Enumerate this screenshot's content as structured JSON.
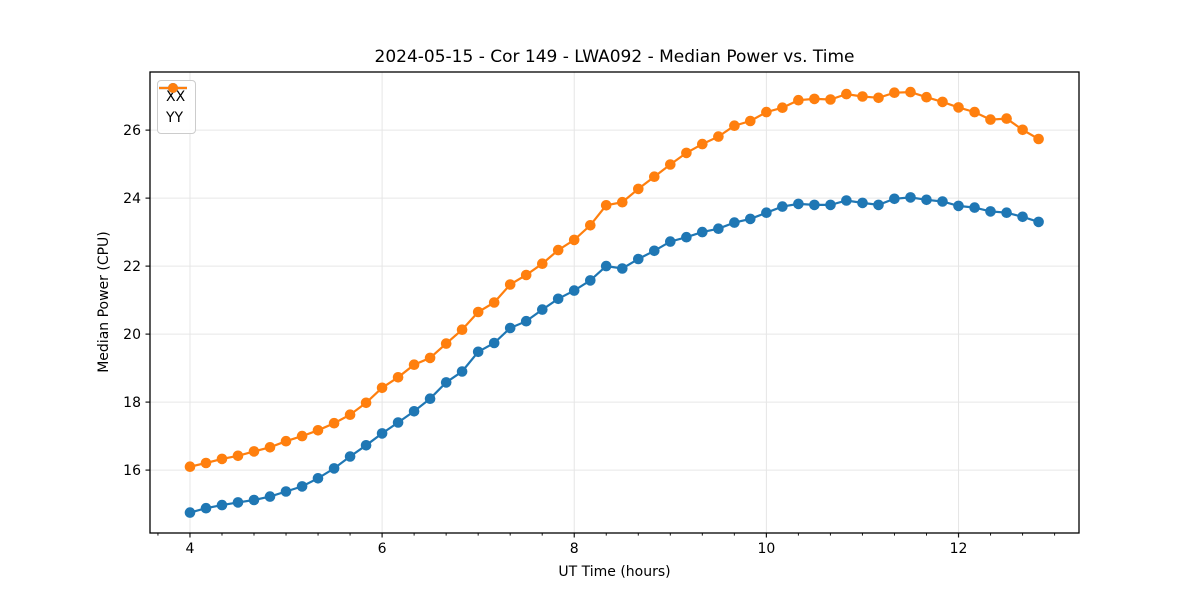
{
  "figure": {
    "title": "2024-05-15 - Cor 149 - LWA092 - Median Power vs. Time"
  },
  "chart_data": {
    "type": "line",
    "title": "2024-05-15 - Cor 149 - LWA092 - Median Power vs. Time",
    "xlabel": "UT Time (hours)",
    "ylabel": "Median Power (CPU)",
    "xlim": [
      3.584,
      13.254
    ],
    "ylim": [
      14.15,
      27.71
    ],
    "xticks": [
      4,
      6,
      8,
      10,
      12
    ],
    "yticks": [
      16,
      18,
      20,
      22,
      24,
      26
    ],
    "x_minor_tick_step": 0.33333,
    "grid": true,
    "grid_color": "#e6e6e6",
    "legend_position": "upper-left",
    "marker": "circle",
    "x": [
      4.0,
      4.167,
      4.333,
      4.5,
      4.667,
      4.833,
      5.0,
      5.167,
      5.333,
      5.5,
      5.667,
      5.833,
      6.0,
      6.167,
      6.333,
      6.5,
      6.667,
      6.833,
      7.0,
      7.167,
      7.333,
      7.5,
      7.667,
      7.833,
      8.0,
      8.167,
      8.333,
      8.5,
      8.667,
      8.833,
      9.0,
      9.167,
      9.333,
      9.5,
      9.667,
      9.833,
      10.0,
      10.167,
      10.333,
      10.5,
      10.667,
      10.833,
      11.0,
      11.167,
      11.333,
      11.5,
      11.667,
      11.833,
      12.0,
      12.167,
      12.333,
      12.5,
      12.667,
      12.833
    ],
    "series": [
      {
        "name": "XX",
        "color": "#1f77b4",
        "values": [
          14.75,
          14.88,
          14.97,
          15.05,
          15.12,
          15.22,
          15.37,
          15.52,
          15.76,
          16.05,
          16.4,
          16.73,
          17.08,
          17.4,
          17.73,
          18.1,
          18.58,
          18.9,
          19.48,
          19.74,
          20.18,
          20.38,
          20.72,
          21.04,
          21.28,
          21.58,
          22.0,
          21.93,
          22.21,
          22.45,
          22.72,
          22.85,
          23.0,
          23.1,
          23.28,
          23.39,
          23.57,
          23.75,
          23.83,
          23.8,
          23.8,
          23.93,
          23.86,
          23.8,
          23.98,
          24.02,
          23.95,
          23.9,
          23.77,
          23.72,
          23.61,
          23.57,
          23.45,
          23.3
        ]
      },
      {
        "name": "YY",
        "color": "#ff7f0e",
        "values": [
          16.1,
          16.21,
          16.33,
          16.42,
          16.55,
          16.67,
          16.85,
          17.0,
          17.17,
          17.38,
          17.63,
          17.98,
          18.42,
          18.73,
          19.1,
          19.3,
          19.72,
          20.13,
          20.65,
          20.93,
          21.46,
          21.74,
          22.07,
          22.47,
          22.77,
          23.2,
          23.79,
          23.88,
          24.27,
          24.63,
          24.99,
          25.33,
          25.59,
          25.81,
          26.13,
          26.27,
          26.53,
          26.66,
          26.88,
          26.92,
          26.9,
          27.06,
          26.99,
          26.95,
          27.1,
          27.12,
          26.97,
          26.83,
          26.67,
          26.53,
          26.31,
          26.34,
          26.01,
          25.74
        ]
      }
    ]
  }
}
